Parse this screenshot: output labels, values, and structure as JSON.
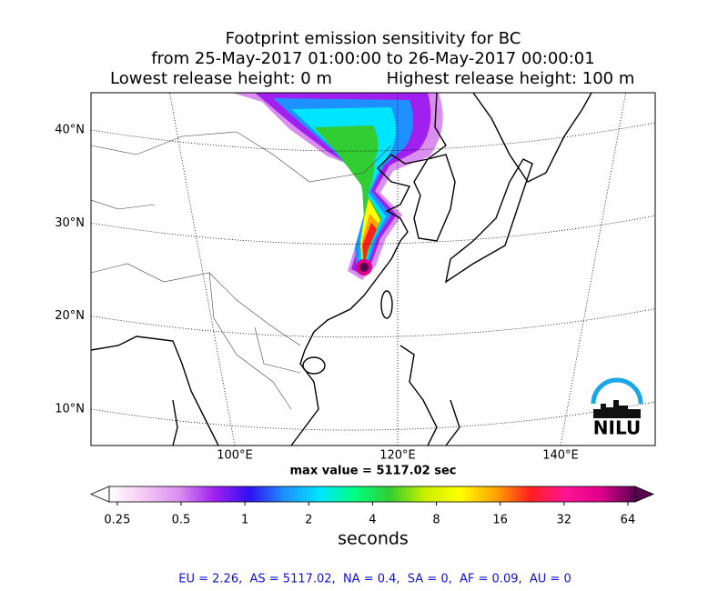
{
  "chart_data": {
    "type": "footprint-map",
    "title_lines": [
      "Footprint emission sensitivity for BC",
      "from 25-May-2017 01:00:00 to 26-May-2017 00:00:01"
    ],
    "release_heights": [
      "Lowest release height: 0 m",
      "Highest release height: 100 m"
    ],
    "yticks": [
      {
        "value": 40,
        "label": "40°N"
      },
      {
        "value": 30,
        "label": "30°N"
      },
      {
        "value": 20,
        "label": "20°N"
      },
      {
        "value": 10,
        "label": "10°N"
      }
    ],
    "xticks": [
      {
        "value": 100,
        "label": "100°E"
      },
      {
        "value": 120,
        "label": "120°E"
      },
      {
        "value": 140,
        "label": "140°E"
      }
    ],
    "max_label": "max value = 5117.02 sec",
    "colorbar": {
      "log_scale": true,
      "clim": [
        0.229,
        69.3
      ],
      "ticks": [
        0.25,
        0.5,
        1,
        2,
        4,
        8,
        16,
        32,
        64
      ],
      "label": "seconds",
      "colors": [
        "#ffffff",
        "#f4c8f4",
        "#d98ef0",
        "#a020f0",
        "#3010f0",
        "#1e90ff",
        "#00e5ff",
        "#00ff7f",
        "#32cd32",
        "#c8f000",
        "#ffff00",
        "#ffa500",
        "#ff2020",
        "#ff1493",
        "#e0008c",
        "#5a0050"
      ]
    },
    "logo": "NILU",
    "footer": "EU = 2.26,  AS = 5117.02,  NA = 0.4,  SA = 0,  AF = 0.09,  AU = 0"
  }
}
